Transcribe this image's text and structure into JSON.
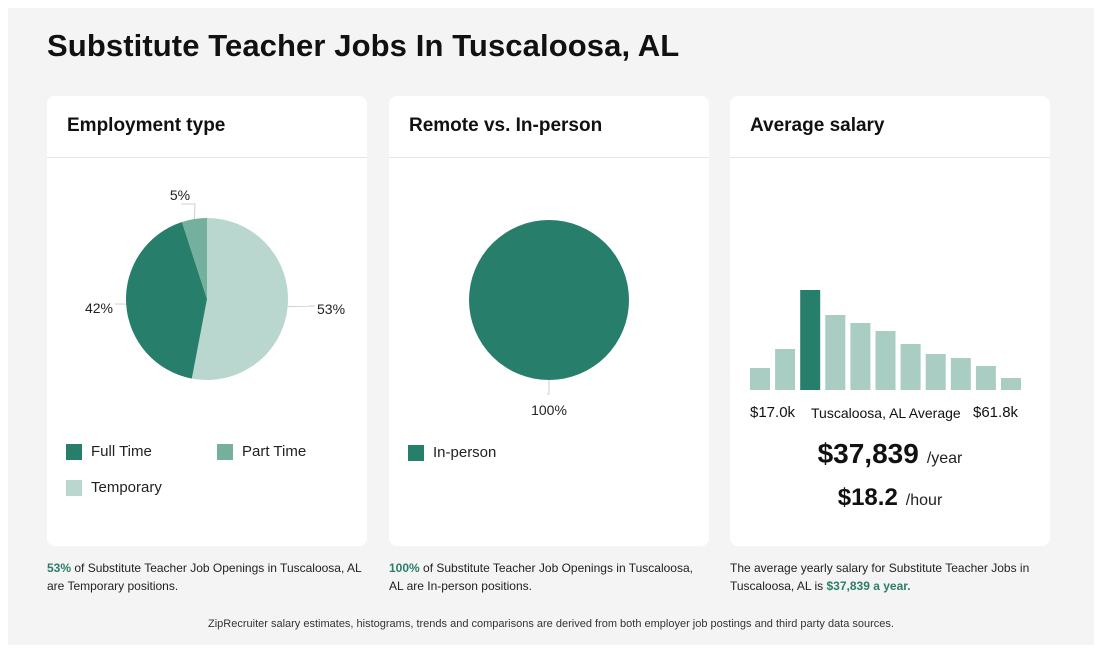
{
  "page": {
    "title": "Substitute Teacher Jobs In Tuscaloosa, AL",
    "footer": "ZipRecruiter salary estimates, histograms, trends and comparisons are derived from both employer job postings and third party data sources."
  },
  "employment": {
    "heading": "Employment type",
    "caption_highlight": "53%",
    "caption_text": " of Substitute Teacher Job Openings in Tuscaloosa, AL are Temporary positions.",
    "legend": [
      "Full Time",
      "Part Time",
      "Temporary"
    ]
  },
  "remote": {
    "heading": "Remote vs. In-person",
    "caption_highlight": "100%",
    "caption_text": " of Substitute Teacher Job Openings in Tuscaloosa, AL are In-person positions.",
    "legend": [
      "In-person"
    ]
  },
  "salary": {
    "heading": "Average salary",
    "min_label": "$17.0k",
    "location_label": "Tuscaloosa, AL Average",
    "max_label": "$61.8k",
    "yearly_value": "$37,839",
    "yearly_unit": "/year",
    "hourly_value": "$18.2",
    "hourly_unit": "/hour",
    "caption_text": "The average yearly salary for Substitute Teacher Jobs in Tuscaloosa, AL is ",
    "caption_highlight": "$37,839 a year."
  },
  "colors": {
    "dark_green": "#277e6b",
    "mid_green": "#75b09f",
    "light_green": "#b9d7ce",
    "hist_light": "#a9cdc2",
    "highlight_text": "#2b7e6a"
  },
  "chart_data": [
    {
      "type": "pie",
      "title": "Employment type",
      "categories": [
        "Full Time",
        "Part Time",
        "Temporary"
      ],
      "values": [
        42,
        5,
        53
      ],
      "labels": [
        "42%",
        "5%",
        "53%"
      ],
      "colors": [
        "#277e6b",
        "#75b09f",
        "#b9d7ce"
      ]
    },
    {
      "type": "pie",
      "title": "Remote vs. In-person",
      "categories": [
        "In-person"
      ],
      "values": [
        100
      ],
      "labels": [
        "100%"
      ],
      "colors": [
        "#277e6b"
      ]
    },
    {
      "type": "bar",
      "title": "Average salary",
      "xlabel": "",
      "x_range_labels": [
        "$17.0k",
        "$61.8k"
      ],
      "values": [
        22,
        41,
        100,
        75,
        67,
        59,
        46,
        36,
        32,
        24,
        12
      ],
      "highlight_index": 2,
      "highlight_label": "Tuscaloosa, AL Average",
      "ylim": [
        0,
        100
      ]
    }
  ]
}
